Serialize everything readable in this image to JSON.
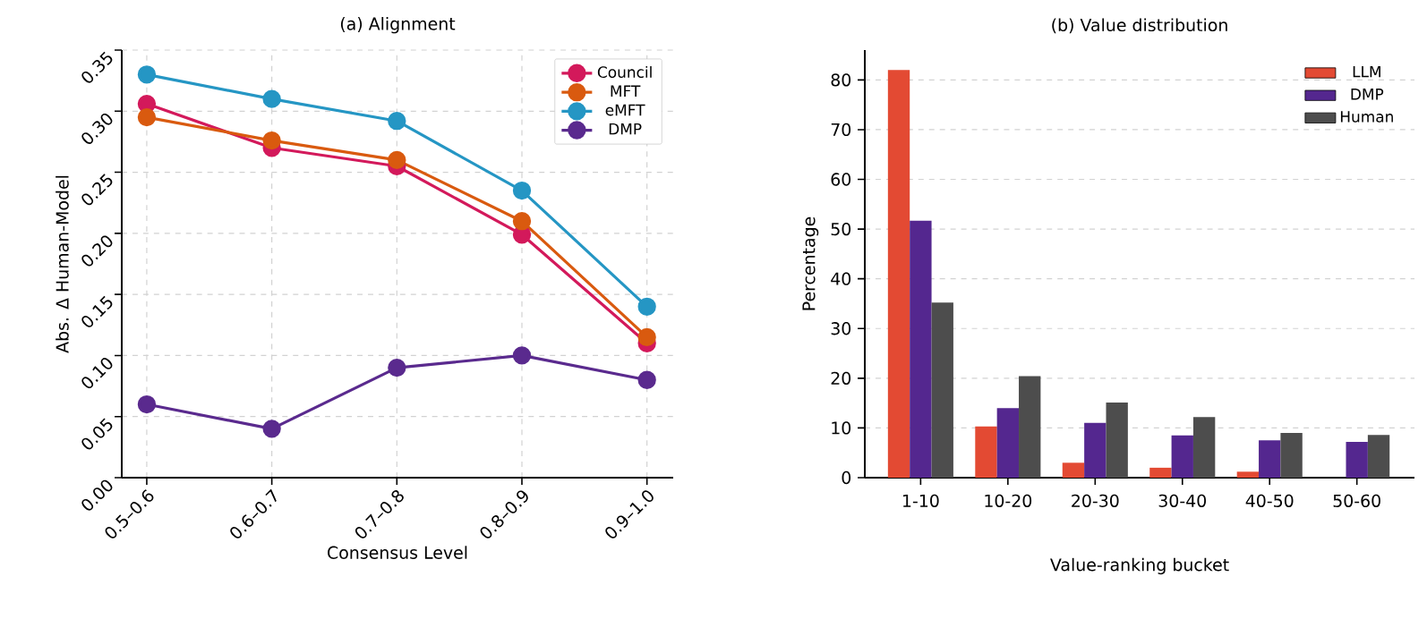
{
  "chart_data": [
    {
      "type": "line",
      "title": "(a) Alignment",
      "xlabel": "Consensus Level",
      "ylabel": "Abs. Δ Human-Model",
      "categories": [
        "0.5–0.6",
        "0.6–0.7",
        "0.7–0.8",
        "0.8–0.9",
        "0.9–1.0"
      ],
      "series": [
        {
          "name": "Council",
          "color": "#d3195b",
          "values": [
            0.306,
            0.27,
            0.255,
            0.199,
            0.11
          ]
        },
        {
          "name": "MFT",
          "color": "#d95a0f",
          "values": [
            0.295,
            0.276,
            0.26,
            0.21,
            0.115
          ]
        },
        {
          "name": "eMFT",
          "color": "#2596c4",
          "values": [
            0.33,
            0.31,
            0.292,
            0.235,
            0.14
          ]
        },
        {
          "name": "DMP",
          "color": "#5a2a8e",
          "values": [
            0.06,
            0.04,
            0.09,
            0.1,
            0.08
          ]
        }
      ],
      "ylim": [
        0,
        0.35
      ],
      "yticks": [
        {
          "value": 0,
          "label": "0.00"
        },
        {
          "value": 0.05,
          "label": "0.05"
        },
        {
          "value": 0.1,
          "label": "0.10"
        },
        {
          "value": 0.15,
          "label": "0.15"
        },
        {
          "value": 0.2,
          "label": "0.20"
        },
        {
          "value": 0.25,
          "label": "0.25"
        },
        {
          "value": 0.3,
          "label": "0.30"
        },
        {
          "value": 0.35,
          "label": "0.35"
        }
      ],
      "grid": true,
      "legend": "top right",
      "marker": "circle",
      "line_style": "solid"
    },
    {
      "type": "bar",
      "title": "(b) Value distribution",
      "xlabel": "Value-ranking bucket",
      "ylabel": "Percentage",
      "categories": [
        "1-10",
        "10-20",
        "20-30",
        "30-40",
        "40-50",
        "50-60"
      ],
      "series": [
        {
          "name": "LLM",
          "color": "#e34a33",
          "values": [
            82,
            10.3,
            3,
            2,
            1.2,
            0
          ]
        },
        {
          "name": "DMP",
          "color": "#54278f",
          "values": [
            51.7,
            14,
            11,
            8.5,
            7.5,
            7.2
          ]
        },
        {
          "name": "Human",
          "color": "#4d4d4d",
          "values": [
            35.2,
            20.4,
            15.1,
            12.2,
            9,
            8.6
          ]
        }
      ],
      "ylim": [
        0,
        86
      ],
      "yticks": [
        0,
        10,
        20,
        30,
        40,
        50,
        60,
        70,
        80
      ],
      "grid": "y",
      "legend": "top right"
    }
  ]
}
